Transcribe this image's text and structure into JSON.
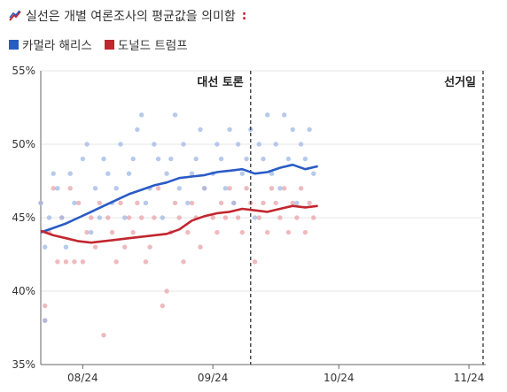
{
  "header": {
    "text": "실선은 개별 여론조사의 평균값을 의미함",
    "icon": "trend-icon",
    "trailing": ":"
  },
  "colors": {
    "harris": "#2a5bc5",
    "trump": "#c2262e",
    "harris_dot": "#9fb8e6",
    "trump_dot": "#eaa3a8"
  },
  "chart_data": {
    "type": "line",
    "title": "",
    "xlabel": "",
    "ylabel": "",
    "x_ticks": [
      {
        "date": "2024-08-01",
        "label": "08/24"
      },
      {
        "date": "2024-09-01",
        "label": "09/24"
      },
      {
        "date": "2024-10-01",
        "label": "10/24"
      },
      {
        "date": "2024-11-01",
        "label": "11/24"
      }
    ],
    "y_ticks": [
      35,
      40,
      45,
      50,
      55
    ],
    "y_tick_labels": [
      "35%",
      "40%",
      "45%",
      "50%",
      "55%"
    ],
    "ylim": [
      35,
      55
    ],
    "xlim": [
      "2024-07-22",
      "2024-11-05"
    ],
    "annotations": [
      {
        "label": "대선 토론",
        "date": "2024-09-10",
        "align": "left-of-line"
      },
      {
        "label": "선거일",
        "date": "2024-11-05",
        "align": "left-of-line"
      }
    ],
    "series": [
      {
        "name": "카멀라 해리스",
        "color": "#2a5bc5",
        "x": [
          "2024-07-22",
          "2024-07-25",
          "2024-07-28",
          "2024-07-31",
          "2024-08-03",
          "2024-08-06",
          "2024-08-09",
          "2024-08-12",
          "2024-08-15",
          "2024-08-18",
          "2024-08-21",
          "2024-08-24",
          "2024-08-27",
          "2024-08-30",
          "2024-09-02",
          "2024-09-05",
          "2024-09-08",
          "2024-09-11",
          "2024-09-14",
          "2024-09-17",
          "2024-09-20",
          "2024-09-23",
          "2024-09-26"
        ],
        "values": [
          44.0,
          44.3,
          44.6,
          45.0,
          45.4,
          45.8,
          46.2,
          46.6,
          46.9,
          47.2,
          47.4,
          47.7,
          47.8,
          47.9,
          48.1,
          48.2,
          48.3,
          48.0,
          48.1,
          48.4,
          48.6,
          48.3,
          48.5
        ]
      },
      {
        "name": "도널드 트럼프",
        "color": "#c2262e",
        "x": [
          "2024-07-22",
          "2024-07-25",
          "2024-07-28",
          "2024-07-31",
          "2024-08-03",
          "2024-08-06",
          "2024-08-09",
          "2024-08-12",
          "2024-08-15",
          "2024-08-18",
          "2024-08-21",
          "2024-08-24",
          "2024-08-27",
          "2024-08-30",
          "2024-09-02",
          "2024-09-05",
          "2024-09-08",
          "2024-09-11",
          "2024-09-14",
          "2024-09-17",
          "2024-09-20",
          "2024-09-23",
          "2024-09-26"
        ],
        "values": [
          44.1,
          43.8,
          43.6,
          43.4,
          43.3,
          43.4,
          43.5,
          43.6,
          43.7,
          43.8,
          43.9,
          44.2,
          44.8,
          45.1,
          45.3,
          45.4,
          45.6,
          45.5,
          45.4,
          45.6,
          45.8,
          45.7,
          45.8
        ]
      }
    ],
    "polls": {
      "harris": [
        [
          "2024-07-22",
          46
        ],
        [
          "2024-07-23",
          43
        ],
        [
          "2024-07-23",
          38
        ],
        [
          "2024-07-24",
          45
        ],
        [
          "2024-07-25",
          48
        ],
        [
          "2024-07-26",
          47
        ],
        [
          "2024-07-27",
          45
        ],
        [
          "2024-07-28",
          43
        ],
        [
          "2024-07-29",
          48
        ],
        [
          "2024-07-30",
          46
        ],
        [
          "2024-08-01",
          49
        ],
        [
          "2024-08-02",
          50
        ],
        [
          "2024-08-03",
          44
        ],
        [
          "2024-08-04",
          47
        ],
        [
          "2024-08-05",
          45
        ],
        [
          "2024-08-06",
          49
        ],
        [
          "2024-08-07",
          48
        ],
        [
          "2024-08-08",
          46
        ],
        [
          "2024-08-09",
          47
        ],
        [
          "2024-08-10",
          50
        ],
        [
          "2024-08-11",
          45
        ],
        [
          "2024-08-12",
          48
        ],
        [
          "2024-08-13",
          49
        ],
        [
          "2024-08-14",
          51
        ],
        [
          "2024-08-15",
          52
        ],
        [
          "2024-08-16",
          46
        ],
        [
          "2024-08-17",
          47
        ],
        [
          "2024-08-18",
          50
        ],
        [
          "2024-08-19",
          49
        ],
        [
          "2024-08-20",
          45
        ],
        [
          "2024-08-21",
          48
        ],
        [
          "2024-08-22",
          49
        ],
        [
          "2024-08-23",
          52
        ],
        [
          "2024-08-24",
          47
        ],
        [
          "2024-08-25",
          50
        ],
        [
          "2024-08-26",
          46
        ],
        [
          "2024-08-27",
          48
        ],
        [
          "2024-08-28",
          49
        ],
        [
          "2024-08-29",
          51
        ],
        [
          "2024-08-30",
          47
        ],
        [
          "2024-09-01",
          48
        ],
        [
          "2024-09-02",
          50
        ],
        [
          "2024-09-03",
          49
        ],
        [
          "2024-09-04",
          47
        ],
        [
          "2024-09-05",
          51
        ],
        [
          "2024-09-06",
          46
        ],
        [
          "2024-09-07",
          50
        ],
        [
          "2024-09-08",
          48
        ],
        [
          "2024-09-09",
          49
        ],
        [
          "2024-09-10",
          51
        ],
        [
          "2024-09-11",
          45
        ],
        [
          "2024-09-12",
          50
        ],
        [
          "2024-09-13",
          49
        ],
        [
          "2024-09-14",
          52
        ],
        [
          "2024-09-15",
          48
        ],
        [
          "2024-09-16",
          50
        ],
        [
          "2024-09-17",
          47
        ],
        [
          "2024-09-18",
          52
        ],
        [
          "2024-09-19",
          49
        ],
        [
          "2024-09-20",
          51
        ],
        [
          "2024-09-21",
          46
        ],
        [
          "2024-09-22",
          50
        ],
        [
          "2024-09-23",
          49
        ],
        [
          "2024-09-24",
          51
        ],
        [
          "2024-09-25",
          48
        ]
      ],
      "trump": [
        [
          "2024-07-22",
          46
        ],
        [
          "2024-07-23",
          39
        ],
        [
          "2024-07-23",
          38
        ],
        [
          "2024-07-24",
          44
        ],
        [
          "2024-07-25",
          47
        ],
        [
          "2024-07-26",
          42
        ],
        [
          "2024-07-27",
          45
        ],
        [
          "2024-07-28",
          42
        ],
        [
          "2024-07-29",
          47
        ],
        [
          "2024-07-30",
          42
        ],
        [
          "2024-07-31",
          46
        ],
        [
          "2024-08-01",
          42
        ],
        [
          "2024-08-02",
          44
        ],
        [
          "2024-08-03",
          45
        ],
        [
          "2024-08-04",
          43
        ],
        [
          "2024-08-05",
          46
        ],
        [
          "2024-08-06",
          37
        ],
        [
          "2024-08-07",
          45
        ],
        [
          "2024-08-08",
          44
        ],
        [
          "2024-08-09",
          42
        ],
        [
          "2024-08-10",
          46
        ],
        [
          "2024-08-11",
          43
        ],
        [
          "2024-08-12",
          45
        ],
        [
          "2024-08-13",
          44
        ],
        [
          "2024-08-14",
          46
        ],
        [
          "2024-08-15",
          45
        ],
        [
          "2024-08-16",
          42
        ],
        [
          "2024-08-17",
          43
        ],
        [
          "2024-08-18",
          45
        ],
        [
          "2024-08-19",
          47
        ],
        [
          "2024-08-20",
          39
        ],
        [
          "2024-08-21",
          40
        ],
        [
          "2024-08-22",
          44
        ],
        [
          "2024-08-23",
          46
        ],
        [
          "2024-08-24",
          45
        ],
        [
          "2024-08-25",
          42
        ],
        [
          "2024-08-26",
          44
        ],
        [
          "2024-08-27",
          46
        ],
        [
          "2024-08-28",
          45
        ],
        [
          "2024-08-29",
          43
        ],
        [
          "2024-08-30",
          47
        ],
        [
          "2024-09-01",
          45
        ],
        [
          "2024-09-02",
          44
        ],
        [
          "2024-09-03",
          46
        ],
        [
          "2024-09-04",
          45
        ],
        [
          "2024-09-05",
          47
        ],
        [
          "2024-09-06",
          46
        ],
        [
          "2024-09-07",
          45
        ],
        [
          "2024-09-08",
          44
        ],
        [
          "2024-09-09",
          47
        ],
        [
          "2024-09-10",
          46
        ],
        [
          "2024-09-11",
          42
        ],
        [
          "2024-09-12",
          45
        ],
        [
          "2024-09-13",
          46
        ],
        [
          "2024-09-14",
          44
        ],
        [
          "2024-09-15",
          47
        ],
        [
          "2024-09-16",
          46
        ],
        [
          "2024-09-17",
          45
        ],
        [
          "2024-09-18",
          47
        ],
        [
          "2024-09-19",
          44
        ],
        [
          "2024-09-20",
          46
        ],
        [
          "2024-09-21",
          45
        ],
        [
          "2024-09-22",
          47
        ],
        [
          "2024-09-23",
          44
        ],
        [
          "2024-09-24",
          46
        ],
        [
          "2024-09-25",
          45
        ]
      ]
    }
  }
}
